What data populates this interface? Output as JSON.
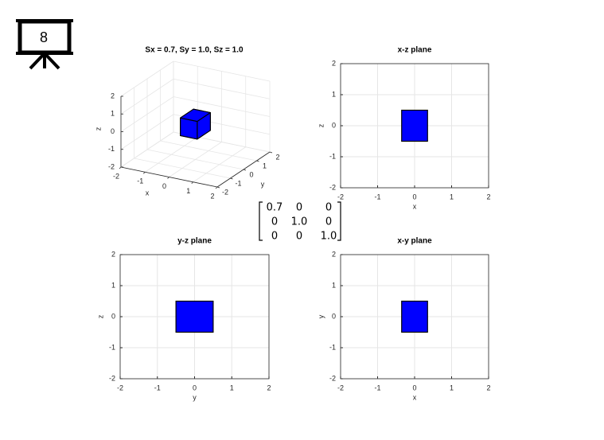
{
  "slide_number": "8",
  "matrix": {
    "rows": [
      [
        "0.7",
        "0",
        "0"
      ],
      [
        "0",
        "1.0",
        "0"
      ],
      [
        "0",
        "0",
        "1.0"
      ]
    ],
    "highlight_color": "#e00000"
  },
  "chart_data": [
    {
      "type": "patch3d",
      "title": "Sx = 0.7, Sy = 1.0, Sz = 1.0",
      "xlabel": "x",
      "ylabel": "y",
      "zlabel": "z",
      "xlim": [
        -2,
        2
      ],
      "ylim": [
        -2,
        2
      ],
      "zlim": [
        -2,
        2
      ],
      "xticks": [
        -2,
        -1,
        0,
        1,
        2
      ],
      "yticks": [
        -2,
        -1,
        0,
        1,
        2
      ],
      "zticks": [
        -2,
        -1,
        0,
        1,
        2
      ],
      "grid": true,
      "shape": {
        "x": [
          -0.35,
          0.35
        ],
        "y": [
          -0.5,
          0.5
        ],
        "z": [
          -0.5,
          0.5
        ],
        "color": "#0000ff"
      }
    },
    {
      "type": "patch",
      "title": "x-z plane",
      "xlabel": "x",
      "ylabel": "z",
      "xlim": [
        -2,
        2
      ],
      "ylim": [
        -2,
        2
      ],
      "xticks": [
        -2,
        -1,
        0,
        1,
        2
      ],
      "yticks": [
        -2,
        -1,
        0,
        1,
        2
      ],
      "grid": true,
      "shape": {
        "x": [
          -0.35,
          0.35
        ],
        "y": [
          -0.5,
          0.5
        ],
        "color": "#0000ff"
      }
    },
    {
      "type": "patch",
      "title": "y-z plane",
      "xlabel": "y",
      "ylabel": "z",
      "xlim": [
        -2,
        2
      ],
      "ylim": [
        -2,
        2
      ],
      "xticks": [
        -2,
        -1,
        0,
        1,
        2
      ],
      "yticks": [
        -2,
        -1,
        0,
        1,
        2
      ],
      "grid": true,
      "shape": {
        "x": [
          -0.5,
          0.5
        ],
        "y": [
          -0.5,
          0.5
        ],
        "color": "#0000ff"
      }
    },
    {
      "type": "patch",
      "title": "x-y plane",
      "xlabel": "x",
      "ylabel": "y",
      "xlim": [
        -2,
        2
      ],
      "ylim": [
        -2,
        2
      ],
      "xticks": [
        -2,
        -1,
        0,
        1,
        2
      ],
      "yticks": [
        -2,
        -1,
        0,
        1,
        2
      ],
      "grid": true,
      "shape": {
        "x": [
          -0.35,
          0.35
        ],
        "y": [
          -0.5,
          0.5
        ],
        "color": "#0000ff"
      }
    }
  ]
}
